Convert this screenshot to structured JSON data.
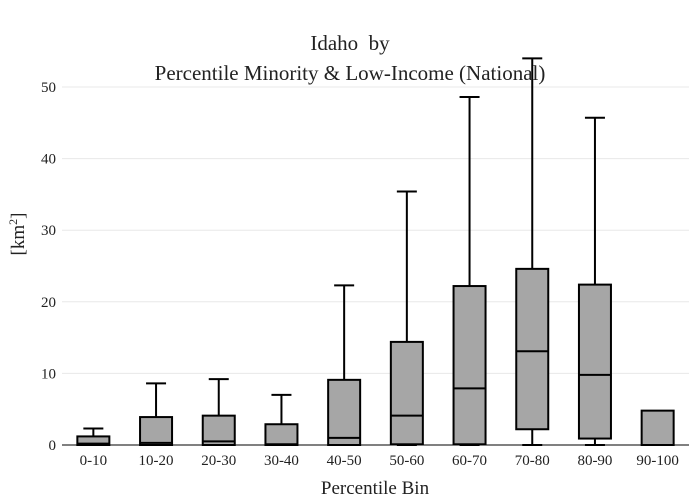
{
  "chart_data": {
    "type": "box",
    "title_line1": "Idaho  by",
    "title_line2": "Percentile Minority & Low-Income (National)",
    "xlabel": "Percentile Bin",
    "ylabel": "[km",
    "ylabel_superscript": "2",
    "ylabel_suffix": "]",
    "ylim": [
      0,
      54
    ],
    "yticks": [
      0,
      10,
      20,
      30,
      40,
      50
    ],
    "grid": true,
    "box_color": "#a6a6a6",
    "edge_color": "#000000",
    "categories": [
      "0-10",
      "10-20",
      "20-30",
      "30-40",
      "40-50",
      "50-60",
      "60-70",
      "70-80",
      "80-90",
      "90-100"
    ],
    "boxes": [
      {
        "min": 0,
        "q1": 0,
        "median": 0.2,
        "q3": 1.2,
        "max": 2.3
      },
      {
        "min": 0,
        "q1": 0,
        "median": 0.3,
        "q3": 3.9,
        "max": 8.6
      },
      {
        "min": 0,
        "q1": 0,
        "median": 0.5,
        "q3": 4.1,
        "max": 9.2
      },
      {
        "min": 0,
        "q1": 0,
        "median": 0.1,
        "q3": 2.9,
        "max": 7.0
      },
      {
        "min": 0,
        "q1": 0,
        "median": 1.0,
        "q3": 9.1,
        "max": 22.3
      },
      {
        "min": 0,
        "q1": 0.1,
        "median": 4.1,
        "q3": 14.4,
        "max": 35.4
      },
      {
        "min": 0,
        "q1": 0.1,
        "median": 7.9,
        "q3": 22.2,
        "max": 48.6
      },
      {
        "min": 0,
        "q1": 2.2,
        "median": 13.1,
        "q3": 24.6,
        "max": 54.0
      },
      {
        "min": 0,
        "q1": 0.9,
        "median": 9.8,
        "q3": 22.4,
        "max": 45.7
      },
      {
        "min": 0,
        "q1": 0,
        "median": 0,
        "q3": 4.8,
        "max": 4.8
      }
    ]
  }
}
